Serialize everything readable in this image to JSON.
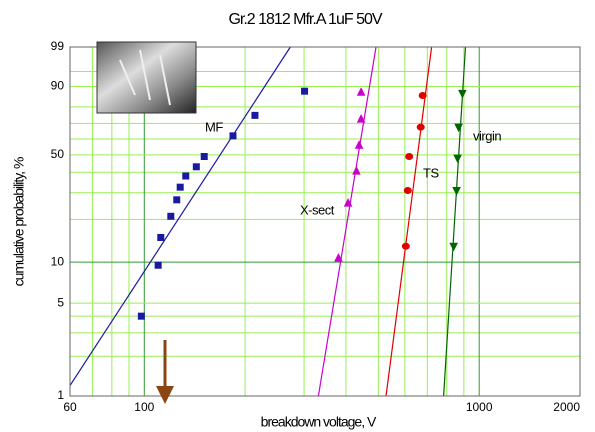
{
  "chart_data": {
    "type": "scatter",
    "title": "Gr.2 1812 Mfr.A 1uF 50V",
    "x_label": "breakdown voltage, V",
    "y_label": "cumulative probability, %",
    "xscale": "log",
    "yscale": "weibull",
    "xlim": [
      60,
      2000
    ],
    "ylim": [
      1,
      99
    ],
    "xticks": [
      60,
      100,
      1000,
      2000
    ],
    "yticks": [
      1,
      5,
      10,
      50,
      90,
      99
    ],
    "xgrid": [
      70,
      80,
      90,
      200,
      300,
      400,
      500,
      600,
      700,
      800,
      900
    ],
    "ygrid": [
      2,
      3,
      4,
      20,
      30,
      40,
      60,
      70,
      80,
      95
    ],
    "grid_color": "#99ee55",
    "major_grid_color": "#339933",
    "series": [
      {
        "name": "MF",
        "color": "#1a1aa0",
        "marker": "square",
        "x": [
          98,
          110,
          112,
          120,
          125,
          128,
          133,
          143,
          151,
          184,
          214,
          301
        ],
        "values": [
          4,
          9.5,
          15,
          21,
          27,
          32.5,
          38,
          43,
          49,
          62,
          75,
          88
        ],
        "fit": {
          "x": [
            60,
            273
          ],
          "y": [
            1.2,
            99
          ]
        }
      },
      {
        "name": "X-sect",
        "color": "#cc00cc",
        "marker": "triangle-up",
        "x": [
          380,
          406,
          430,
          438,
          444,
          444
        ],
        "values": [
          10.7,
          25.7,
          40.6,
          56,
          72.7,
          87.5
        ],
        "fit": {
          "x": [
            331,
            492
          ],
          "y": [
            1,
            99
          ]
        }
      },
      {
        "name": "TS",
        "color": "#e00000",
        "marker": "circle",
        "x": [
          604,
          612,
          618,
          669,
          678
        ],
        "values": [
          13,
          31,
          49,
          67.6,
          86
        ],
        "fit": {
          "x": [
            527,
            721
          ],
          "y": [
            1,
            99
          ]
        }
      },
      {
        "name": "virgin",
        "color": "#006600",
        "marker": "triangle-down",
        "x": [
          839,
          856,
          862,
          868,
          891
        ],
        "values": [
          13,
          31,
          48,
          67.6,
          87
        ],
        "fit": {
          "x": [
            783,
            910
          ],
          "y": [
            1,
            99
          ]
        }
      }
    ]
  }
}
